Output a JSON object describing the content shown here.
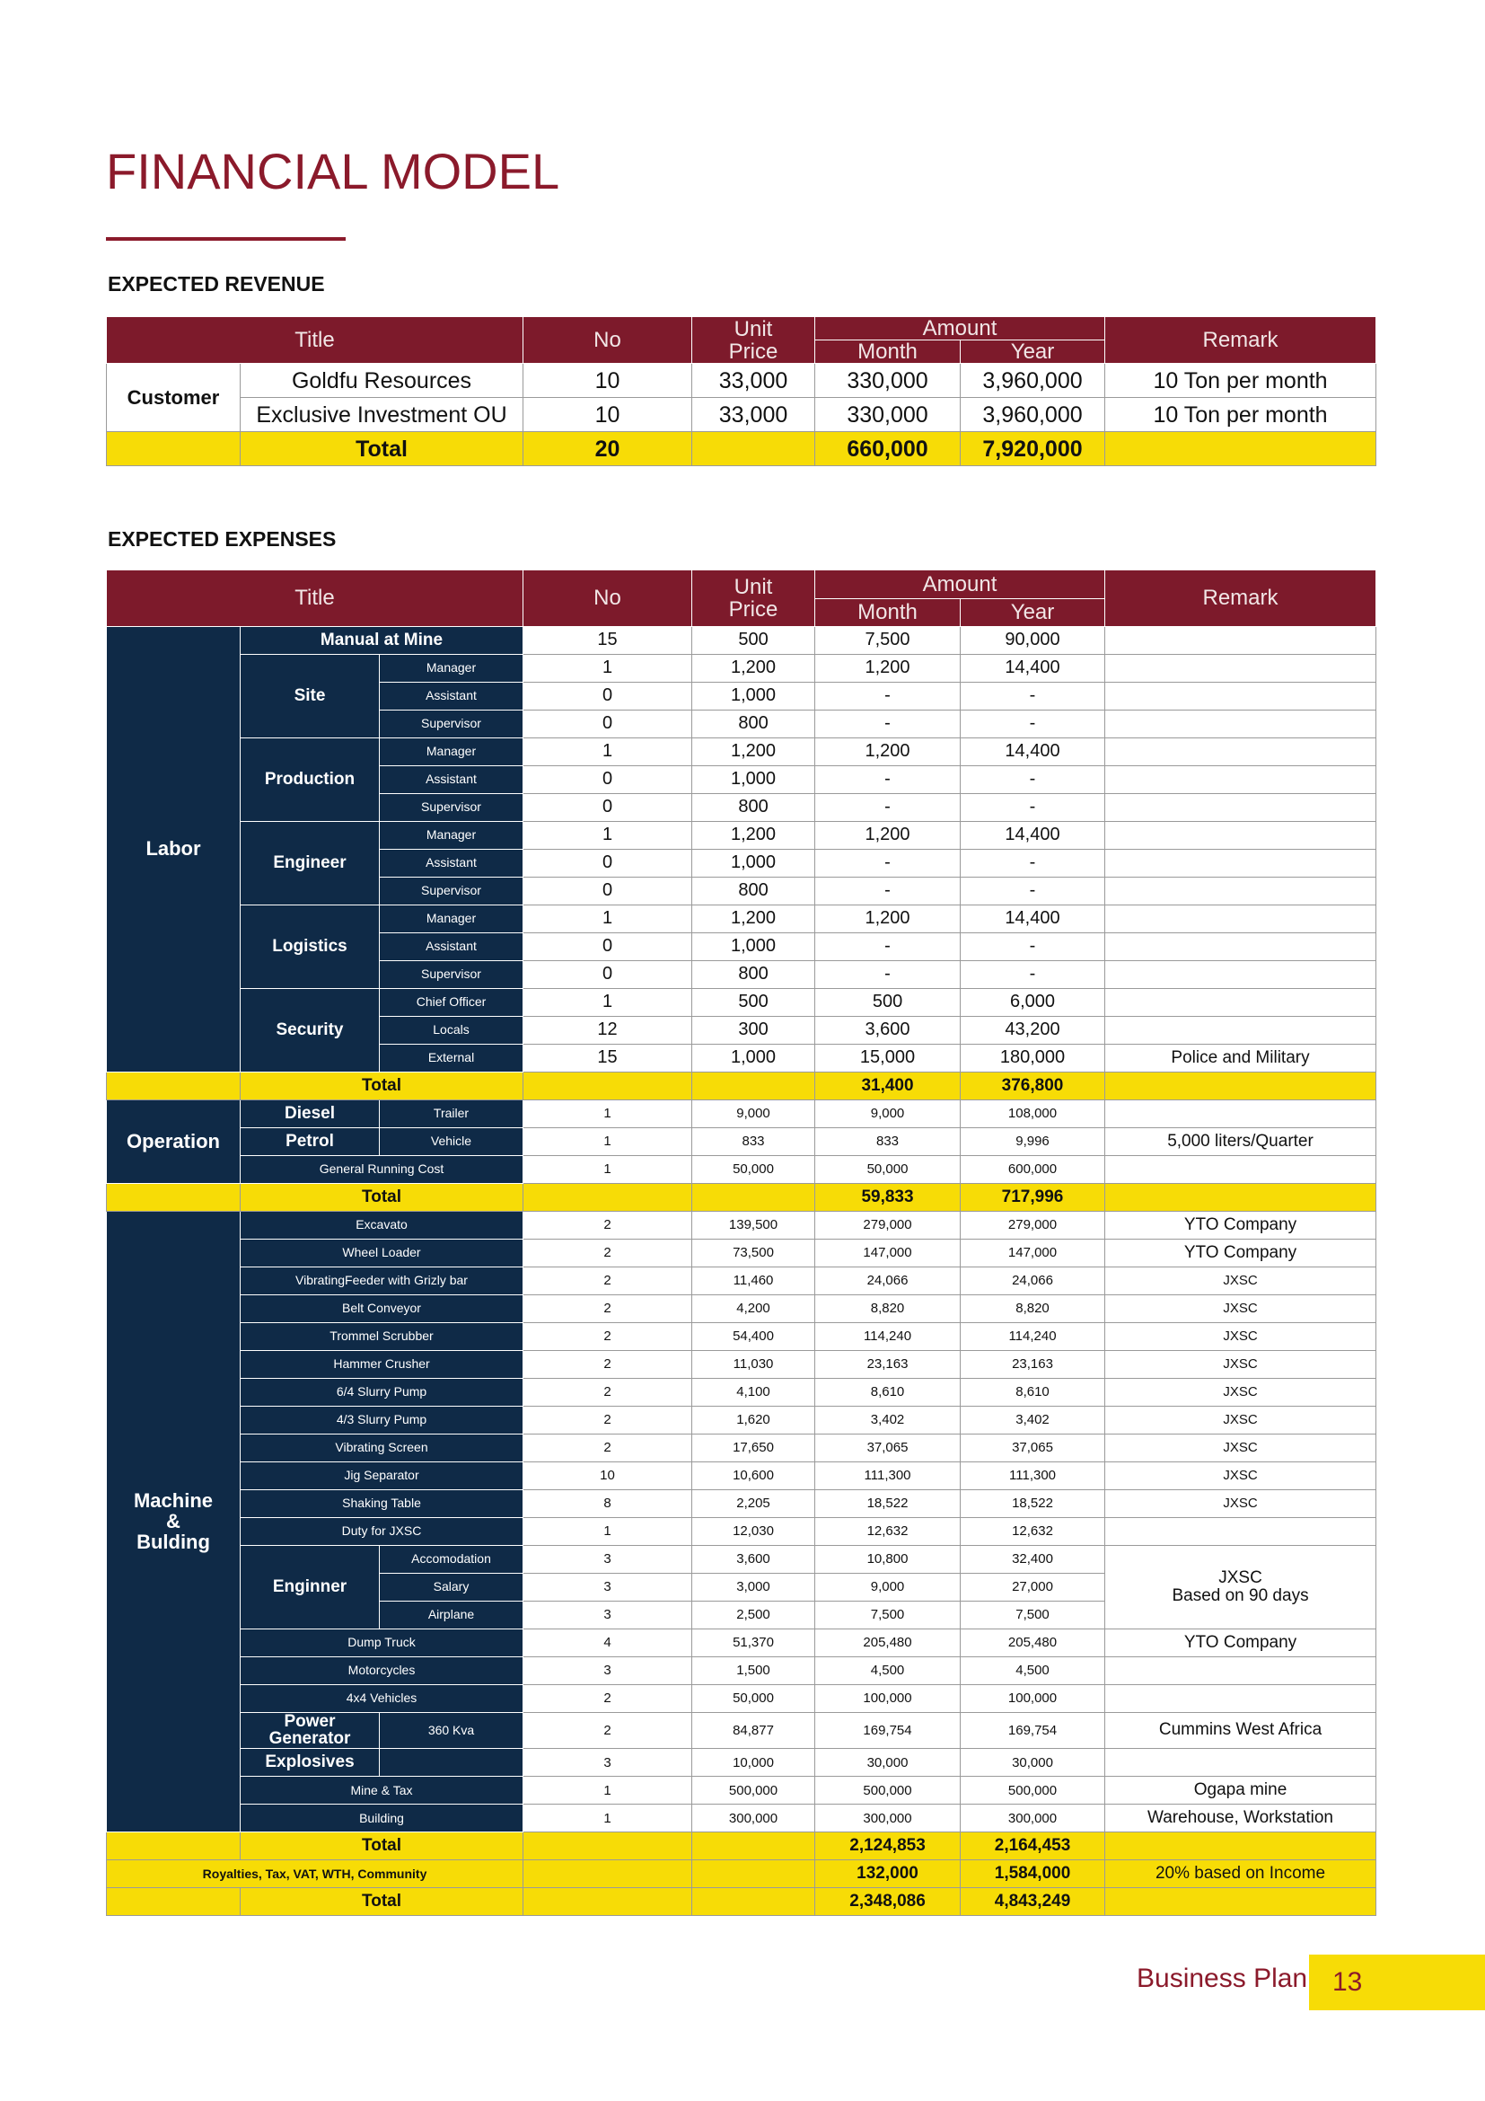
{
  "header": {
    "title": "FINANCIAL MODEL"
  },
  "revenue": {
    "heading": "EXPECTED REVENUE",
    "columns": {
      "title": "Title",
      "no": "No",
      "price": "Unit Price",
      "amount": "Amount",
      "month": "Month",
      "year": "Year",
      "remark": "Remark"
    },
    "group": "Customer",
    "rows": [
      {
        "title": "Goldfu Resources",
        "no": "10",
        "price": "33,000",
        "month": "330,000",
        "year": "3,960,000",
        "remark": "10 Ton per month"
      },
      {
        "title": "Exclusive Investment OU",
        "no": "10",
        "price": "33,000",
        "month": "330,000",
        "year": "3,960,000",
        "remark": "10 Ton per month"
      }
    ],
    "total": {
      "label": "Total",
      "no": "20",
      "month": "660,000",
      "year": "7,920,000"
    }
  },
  "expenses": {
    "heading": "EXPECTED EXPENSES",
    "columns": {
      "title": "Title",
      "no": "No",
      "price": "Unit Price",
      "amount": "Amount",
      "month": "Month",
      "year": "Year",
      "remark": "Remark"
    },
    "sections": [
      {
        "label": "Labor",
        "items": [
          {
            "title": "Manual at Mine",
            "no": "15",
            "price": "500",
            "month": "7,500",
            "year": "90,000"
          },
          {
            "title": "Site",
            "roles": [
              {
                "title": "Manager",
                "no": "1",
                "price": "1,200",
                "month": "1,200",
                "year": "14,400"
              },
              {
                "title": "Assistant",
                "no": "0",
                "price": "1,000",
                "month": "-",
                "year": "-"
              },
              {
                "title": "Supervisor",
                "no": "0",
                "price": "800",
                "month": "-",
                "year": "-"
              }
            ]
          },
          {
            "title": "Production",
            "roles": [
              {
                "title": "Manager",
                "no": "1",
                "price": "1,200",
                "month": "1,200",
                "year": "14,400"
              },
              {
                "title": "Assistant",
                "no": "0",
                "price": "1,000",
                "month": "-",
                "year": "-"
              },
              {
                "title": "Supervisor",
                "no": "0",
                "price": "800",
                "month": "-",
                "year": "-"
              }
            ]
          },
          {
            "title": "Engineer",
            "roles": [
              {
                "title": "Manager",
                "no": "1",
                "price": "1,200",
                "month": "1,200",
                "year": "14,400"
              },
              {
                "title": "Assistant",
                "no": "0",
                "price": "1,000",
                "month": "-",
                "year": "-"
              },
              {
                "title": "Supervisor",
                "no": "0",
                "price": "800",
                "month": "-",
                "year": "-"
              }
            ]
          },
          {
            "title": "Logistics",
            "roles": [
              {
                "title": "Manager",
                "no": "1",
                "price": "1,200",
                "month": "1,200",
                "year": "14,400"
              },
              {
                "title": "Assistant",
                "no": "0",
                "price": "1,000",
                "month": "-",
                "year": "-"
              },
              {
                "title": "Supervisor",
                "no": "0",
                "price": "800",
                "month": "-",
                "year": "-"
              }
            ]
          },
          {
            "title": "Security",
            "roles": [
              {
                "title": "Chief Officer",
                "no": "1",
                "price": "500",
                "month": "500",
                "year": "6,000"
              },
              {
                "title": "Locals",
                "no": "12",
                "price": "300",
                "month": "3,600",
                "year": "43,200"
              },
              {
                "title": "External",
                "no": "15",
                "price": "1,000",
                "month": "15,000",
                "year": "180,000",
                "remark": "Police and Military"
              }
            ]
          }
        ],
        "total": {
          "label": "Total",
          "month": "31,400",
          "year": "376,800"
        }
      },
      {
        "label": "Operation",
        "items": [
          {
            "title": "Diesel",
            "roles": [
              {
                "title": "Trailer",
                "no": "1",
                "price": "9,000",
                "month": "9,000",
                "year": "108,000"
              }
            ]
          },
          {
            "title": "Petrol",
            "roles": [
              {
                "title": "Vehicle",
                "no": "1",
                "price": "833",
                "month": "833",
                "year": "9,996",
                "remark": "5,000 liters/Quarter"
              }
            ]
          },
          {
            "title": "General Running Cost",
            "no": "1",
            "price": "50,000",
            "month": "50,000",
            "year": "600,000"
          }
        ],
        "total": {
          "label": "Total",
          "month": "59,833",
          "year": "717,996"
        }
      },
      {
        "label": "Machine\n&\nBulding",
        "items": [
          {
            "title": "Excavato",
            "no": "2",
            "price": "139,500",
            "month": "279,000",
            "year": "279,000",
            "remark": "YTO Company"
          },
          {
            "title": "Wheel Loader",
            "no": "2",
            "price": "73,500",
            "month": "147,000",
            "year": "147,000",
            "remark": "YTO Company"
          },
          {
            "title": "VibratingFeeder with Grizly bar",
            "no": "2",
            "price": "11,460",
            "month": "24,066",
            "year": "24,066",
            "remark": "JXSC"
          },
          {
            "title": "Belt Conveyor",
            "no": "2",
            "price": "4,200",
            "month": "8,820",
            "year": "8,820",
            "remark": "JXSC"
          },
          {
            "title": "Trommel Scrubber",
            "no": "2",
            "price": "54,400",
            "month": "114,240",
            "year": "114,240",
            "remark": "JXSC"
          },
          {
            "title": "Hammer Crusher",
            "no": "2",
            "price": "11,030",
            "month": "23,163",
            "year": "23,163",
            "remark": "JXSC"
          },
          {
            "title": "6/4 Slurry Pump",
            "no": "2",
            "price": "4,100",
            "month": "8,610",
            "year": "8,610",
            "remark": "JXSC"
          },
          {
            "title": "4/3 Slurry Pump",
            "no": "2",
            "price": "1,620",
            "month": "3,402",
            "year": "3,402",
            "remark": "JXSC"
          },
          {
            "title": "Vibrating Screen",
            "no": "2",
            "price": "17,650",
            "month": "37,065",
            "year": "37,065",
            "remark": "JXSC"
          },
          {
            "title": "Jig Separator",
            "no": "10",
            "price": "10,600",
            "month": "111,300",
            "year": "111,300",
            "remark": "JXSC"
          },
          {
            "title": "Shaking Table",
            "no": "8",
            "price": "2,205",
            "month": "18,522",
            "year": "18,522",
            "remark": "JXSC"
          },
          {
            "title": "Duty for JXSC",
            "no": "1",
            "price": "12,030",
            "month": "12,632",
            "year": "12,632"
          },
          {
            "title": "Enginner",
            "remark": "JXSC\nBased on 90 days",
            "roles": [
              {
                "title": "Accomodation",
                "no": "3",
                "price": "3,600",
                "month": "10,800",
                "year": "32,400"
              },
              {
                "title": "Salary",
                "no": "3",
                "price": "3,000",
                "month": "9,000",
                "year": "27,000"
              },
              {
                "title": "Airplane",
                "no": "3",
                "price": "2,500",
                "month": "7,500",
                "year": "7,500"
              }
            ]
          },
          {
            "title": "Dump Truck",
            "no": "4",
            "price": "51,370",
            "month": "205,480",
            "year": "205,480",
            "remark": "YTO Company"
          },
          {
            "title": "Motorcycles",
            "no": "3",
            "price": "1,500",
            "month": "4,500",
            "year": "4,500"
          },
          {
            "title": "4x4 Vehicles",
            "no": "2",
            "price": "50,000",
            "month": "100,000",
            "year": "100,000"
          },
          {
            "title": "Power Generator",
            "roles": [
              {
                "title": "360 Kva",
                "no": "2",
                "price": "84,877",
                "month": "169,754",
                "year": "169,754",
                "remark": "Cummins West Africa"
              }
            ]
          },
          {
            "title": "Explosives",
            "roles": [
              {
                "no": "3",
                "price": "10,000",
                "month": "30,000",
                "year": "30,000"
              }
            ]
          },
          {
            "title": "Mine & Tax",
            "no": "1",
            "price": "500,000",
            "month": "500,000",
            "year": "500,000",
            "remark": "Ogapa mine"
          },
          {
            "title": "Building",
            "no": "1",
            "price": "300,000",
            "month": "300,000",
            "year": "300,000",
            "remark": "Warehouse, Workstation"
          }
        ],
        "total": {
          "label": "Total",
          "month": "2,124,853",
          "year": "2,164,453"
        }
      }
    ],
    "footer": [
      {
        "label": "Royalties, Tax, VAT, WTH, Community",
        "month": "132,000",
        "year": "1,584,000",
        "remark": "20% based on Income"
      },
      {
        "label": "Total",
        "month": "2,348,086",
        "year": "4,843,249"
      }
    ]
  },
  "footer": {
    "text": "Business Plan",
    "page": "13"
  }
}
